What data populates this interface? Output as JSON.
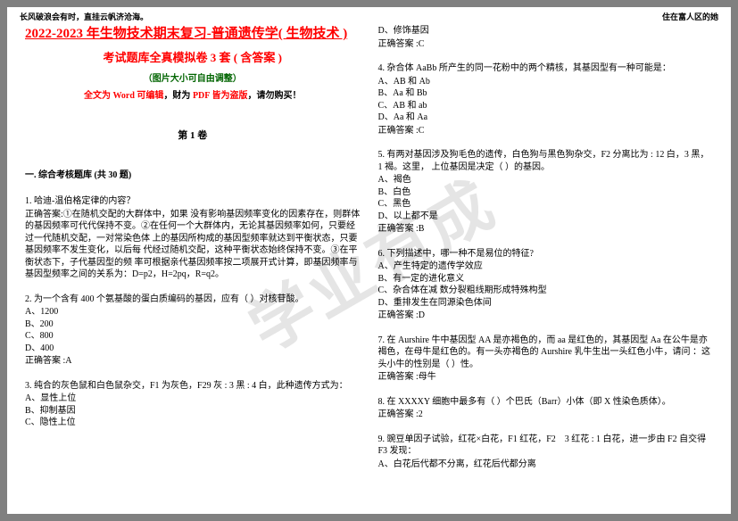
{
  "header": {
    "left": "长风破浪会有时，直挂云帆济沧海。",
    "right": "住在富人区的她"
  },
  "titles": {
    "main": "2022-2023 年生物技术期末复习-普通遗传学( 生物技术 )",
    "sub": "考试题库全真模拟卷 3 套 ( 含答案 )",
    "img_note": "（图片大小可自由调整）",
    "edit_prefix": "全文为 Word 可编辑",
    "edit_mid": "，财为",
    "edit_pdf": " PDF 皆为盗版",
    "edit_suffix": "，请勿购买！"
  },
  "section1": "第 1 卷",
  "category": "一. 综合考核题库 (共 30 题)",
  "watermark": "学业有成",
  "q1": {
    "stem": "1. 哈迪-温伯格定律的内容？",
    "ans_label": "正确答案:",
    "ans": "①在随机交配的大群体中，如果 没有影响基因频率变化的因素存在，则群体的基因频率可代代保持不变。②在任何一个大群体内，无论其基因频率如何，只要经过一代随机交配，一对常染色体 上的基因所构成的基因型频率就达到平衡状态，只要基因频率不发生变化，以后每 代经过随机交配，这种平衡状态始终保持不变。③在平衡状态下，子代基因型的频 率可根据亲代基因频率按二项展开式计算，即基因频率与基因型频率之间的关系为：D=p2，H=2pq，R=q2。"
  },
  "q2": {
    "stem": "2. 为一个含有 400 个氨基酸的蛋白质编码的基因，应有（ ）对核苷酸。",
    "a": "A、1200",
    "b": "B、200",
    "c": "C、800",
    "d": "D、400",
    "ans": "正确答案 :A"
  },
  "q3": {
    "stem": "3. 纯合的灰色鼠和白色鼠杂交，F1 为灰色，F29 灰 : 3 黑 : 4 白，此种遗传方式为：",
    "a": "A、显性上位",
    "b": "B、抑制基因",
    "c": "C、隐性上位"
  },
  "q3r": {
    "d": "D、修饰基因",
    "ans": "正确答案 :C"
  },
  "q4": {
    "stem": "4. 杂合体 AaBb 所产生的同一花粉中的两个精核，其基因型有一种可能是：",
    "a": "A、AB 和 Ab",
    "b": "B、Aa 和 Bb",
    "c": "C、AB 和 ab",
    "d": "D、Aa 和 Aa",
    "ans": "正确答案 :C"
  },
  "q5": {
    "stem": "5. 有两对基因涉及狗毛色的遗传，白色狗与黑色狗杂交，F2 分离比为 : 12 白，3 黑，1 褐。这里， 上位基因是决定（ ）的基因。",
    "a": "A、褐色",
    "b": "B、白色",
    "c": "C、黑色",
    "d": "D、以上都不是",
    "ans": "正确答案 :B"
  },
  "q6": {
    "stem": "6. 下列描述中，哪一种不是易位的特征?",
    "a": "A、产生特定的遗传学效应",
    "b": "B、有一定的进化意义",
    "c": "C、杂合体在减 数分裂粗线期形成特殊构型",
    "d": "D、重排发生在同源染色体间",
    "ans": "正确答案 :D"
  },
  "q7": {
    "stem": "7. 在 Aurshire 牛中基因型 AA 是亦褐色的，而 aa 是红色的，其基因型 Aa 在公牛是亦褐色，在母牛是红色的。有一头亦褐色的 Aurshire 乳牛生出一头红色小牛，请问 ：这头小牛的性别是（ ）性。",
    "ans": "正确答案 :母牛"
  },
  "q8": {
    "stem": "8. 在 XXXXY 细胞中最多有（ ）个巴氏（Barr）小体（即 X 性染色质体）。",
    "ans": "正确答案 :2"
  },
  "q9": {
    "stem": "9. 豌豆单因子试验，红花×白花，F1 红花，F2　3 红花 : 1 白花，进一步由 F2 自交得 F3 发现：",
    "a": "A、白花后代都不分离，红花后代都分离"
  }
}
